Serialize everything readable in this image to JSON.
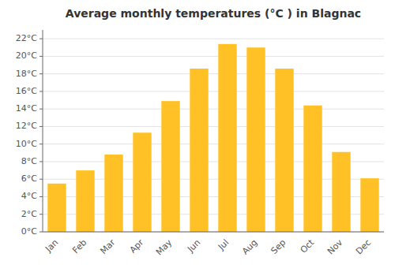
{
  "chart_data": {
    "type": "bar",
    "title": "Average monthly temperatures (°C ) in Blagnac",
    "categories": [
      "Jan",
      "Feb",
      "Mar",
      "Apr",
      "May",
      "Jun",
      "Jul",
      "Aug",
      "Sep",
      "Oct",
      "Nov",
      "Dec"
    ],
    "values": [
      5.5,
      7.0,
      8.8,
      11.3,
      14.9,
      18.6,
      21.4,
      21.0,
      18.6,
      14.4,
      9.1,
      6.1
    ],
    "color": "#FFC125",
    "ylim": [
      0,
      23
    ],
    "yticks": [
      {
        "value": 0,
        "label": "0°C"
      },
      {
        "value": 2,
        "label": "2°C"
      },
      {
        "value": 4,
        "label": "4°C"
      },
      {
        "value": 6,
        "label": "6°C"
      },
      {
        "value": 8,
        "label": "8°C"
      },
      {
        "value": 10,
        "label": "10°C"
      },
      {
        "value": 12,
        "label": "12°C"
      },
      {
        "value": 14,
        "label": "14°C"
      },
      {
        "value": 16,
        "label": "16°C"
      },
      {
        "value": 18,
        "label": "18°C"
      },
      {
        "value": 20,
        "label": "20°C"
      },
      {
        "value": 22,
        "label": "22°C"
      }
    ],
    "grid": true
  }
}
